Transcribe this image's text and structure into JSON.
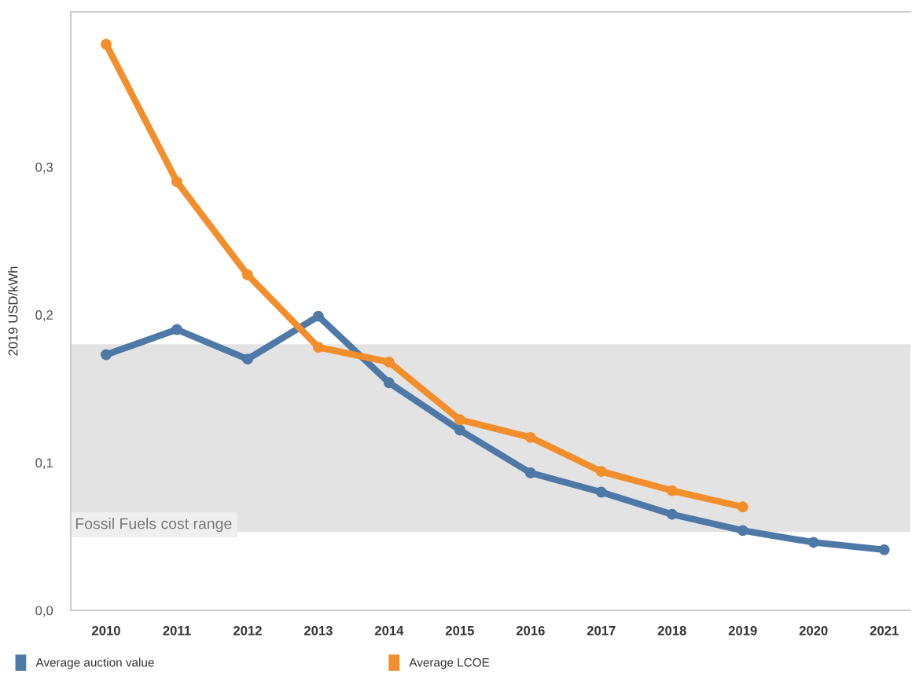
{
  "chart_data": {
    "type": "line",
    "ylabel": "2019 USD/kWh",
    "categories": [
      "2010",
      "2011",
      "2012",
      "2013",
      "2014",
      "2015",
      "2016",
      "2017",
      "2018",
      "2019",
      "2020",
      "2021"
    ],
    "series": [
      {
        "name": "Average auction value",
        "color": "#4e79a7",
        "values": [
          0.173,
          0.19,
          0.17,
          0.199,
          0.154,
          0.122,
          0.093,
          0.08,
          0.065,
          0.054,
          0.046,
          0.041
        ]
      },
      {
        "name": "Average LCOE",
        "color": "#f28e2b",
        "values": [
          0.383,
          0.29,
          0.227,
          0.178,
          0.168,
          0.129,
          0.117,
          0.094,
          0.081,
          0.07,
          null,
          null
        ]
      }
    ],
    "ylim": [
      0,
      0.405
    ],
    "yticks": [
      {
        "value": 0,
        "label": "0,0"
      },
      {
        "value": 0.1,
        "label": "0,1"
      },
      {
        "value": 0.2,
        "label": "0,2"
      },
      {
        "value": 0.3,
        "label": "0,3"
      }
    ],
    "bands": [
      {
        "axis": "y",
        "from": 0.053,
        "to": 0.18,
        "label": "Fossil Fuels cost range",
        "color": "#e3e3e3"
      }
    ],
    "marker": "circle",
    "line_style": "solid",
    "grid": false,
    "legend": "bottom"
  }
}
